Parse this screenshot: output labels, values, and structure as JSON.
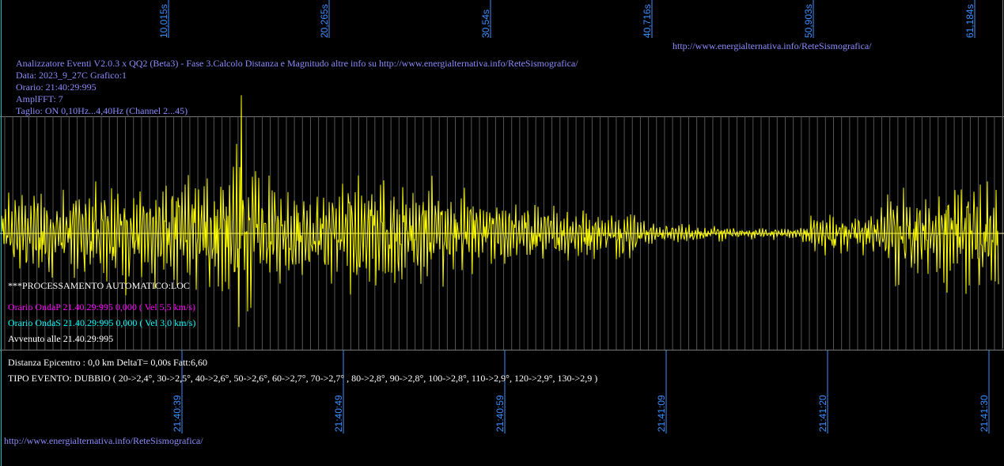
{
  "header": {
    "url_top": "http://www.energialternativa.info/ReteSismografica/",
    "title": "Analizzatore Eventi V2.0.3 x QQ2 (Beta3) - Fase 3.Calcolo Distanza e Magnitudo altre info su http://www.energialternativa.info/ReteSismografica/",
    "data": "Data: 2023_9_27C Grafico:1",
    "orario": "Orario: 21:40:29:995",
    "ampl": "AmplFFT: 7",
    "taglio": "Taglio: ON 0,10Hz...4,40Hz       (Channel 2...45)"
  },
  "processing": {
    "title": "***PROCESSAMENTO AUTOMATICO:LOC",
    "onda_p": "Orario OndaP 21.40.29:995  0,000 ( Vel 5,5 km/s)",
    "onda_s": "Orario OndaS 21.40.29:995  0,000 ( Vel 3,0 km/s)",
    "avvenuto": "Avvenuto alle 21.40.29:995",
    "distanza": "Distanza Epicentro : 0,0 km DeltaT= 0,00s  Fatt:6,60",
    "tipo_evento": "TIPO EVENTO: DUBBIO ( 20->2,4°, 30->2,5°, 40->2,6°, 50->2,6°, 60->2,7°, 70->2,7° , 80->2,8°, 90->2,8°, 100->2,8°, 110->2,9°, 120->2,9°, 130->2,9 )"
  },
  "footer": {
    "url_bottom": "http://www.energialternativa.info/ReteSismografica/"
  },
  "colors": {
    "background": "#000000",
    "trace": "#ffff00",
    "axis_text": "#3a8fff",
    "info_text": "#8c8cff",
    "grid": "#777777",
    "onda_p": "#ff00ff",
    "onda_s": "#00ffff"
  },
  "chart_data": {
    "type": "line",
    "series": [
      {
        "values": []
      }
    ],
    "x_top_ticks": [
      "10,015s",
      "20,265s",
      "30,54s",
      "40,716s",
      "50,903s",
      "61,184s"
    ],
    "x_bottom_ticks": [
      "21:40:39",
      "21:40:49",
      "21:40:59",
      "21:41:09",
      "21:41:20",
      "21:41:30"
    ],
    "envelope": [
      [
        0.0,
        0.4
      ],
      [
        0.05,
        0.45
      ],
      [
        0.09,
        0.5
      ],
      [
        0.16,
        0.55
      ],
      [
        0.2,
        0.55
      ],
      [
        0.23,
        0.8
      ],
      [
        0.25,
        0.7
      ],
      [
        0.28,
        0.45
      ],
      [
        0.32,
        0.45
      ],
      [
        0.35,
        0.55
      ],
      [
        0.38,
        0.65
      ],
      [
        0.41,
        0.45
      ],
      [
        0.44,
        0.55
      ],
      [
        0.47,
        0.35
      ],
      [
        0.52,
        0.3
      ],
      [
        0.58,
        0.25
      ],
      [
        0.63,
        0.25
      ],
      [
        0.65,
        0.12
      ],
      [
        0.7,
        0.08
      ],
      [
        0.75,
        0.06
      ],
      [
        0.8,
        0.05
      ],
      [
        0.81,
        0.2
      ],
      [
        0.85,
        0.2
      ],
      [
        0.88,
        0.25
      ],
      [
        0.9,
        0.5
      ],
      [
        0.92,
        0.35
      ],
      [
        0.95,
        0.5
      ],
      [
        0.98,
        0.55
      ],
      [
        1.0,
        0.5
      ]
    ],
    "grid": true
  }
}
